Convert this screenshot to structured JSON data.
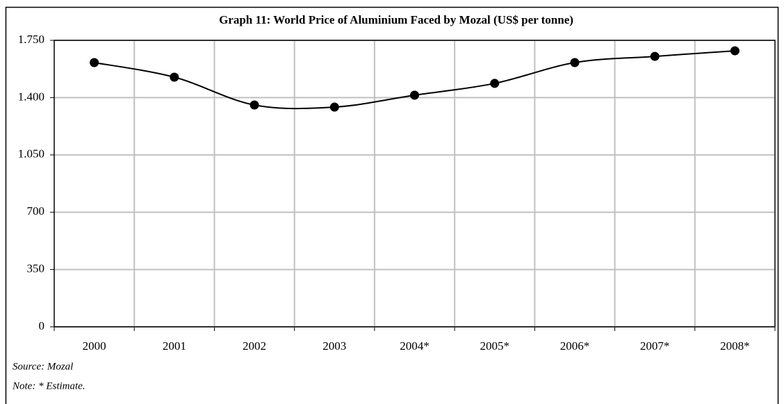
{
  "chart_data": {
    "type": "line",
    "title": "Graph 11: World Price of Aluminium Faced by Mozal (US$ per tonne)",
    "categories": [
      "2000",
      "2001",
      "2002",
      "2003",
      "2004*",
      "2005*",
      "2006*",
      "2007*",
      "2008*"
    ],
    "values": [
      1614,
      1525,
      1355,
      1342,
      1415,
      1487,
      1614,
      1652,
      1686
    ],
    "color": "#000000",
    "ylim": [
      0,
      1750
    ],
    "yticks": [
      0,
      350,
      700,
      {
        "value": 1050,
        "label": "1.050"
      },
      {
        "value": 1400,
        "label": "1.400"
      },
      {
        "value": 1750,
        "label": "1.750"
      }
    ],
    "grid": true,
    "source": "Source: Mozal",
    "note": "Note: * Estimate."
  }
}
